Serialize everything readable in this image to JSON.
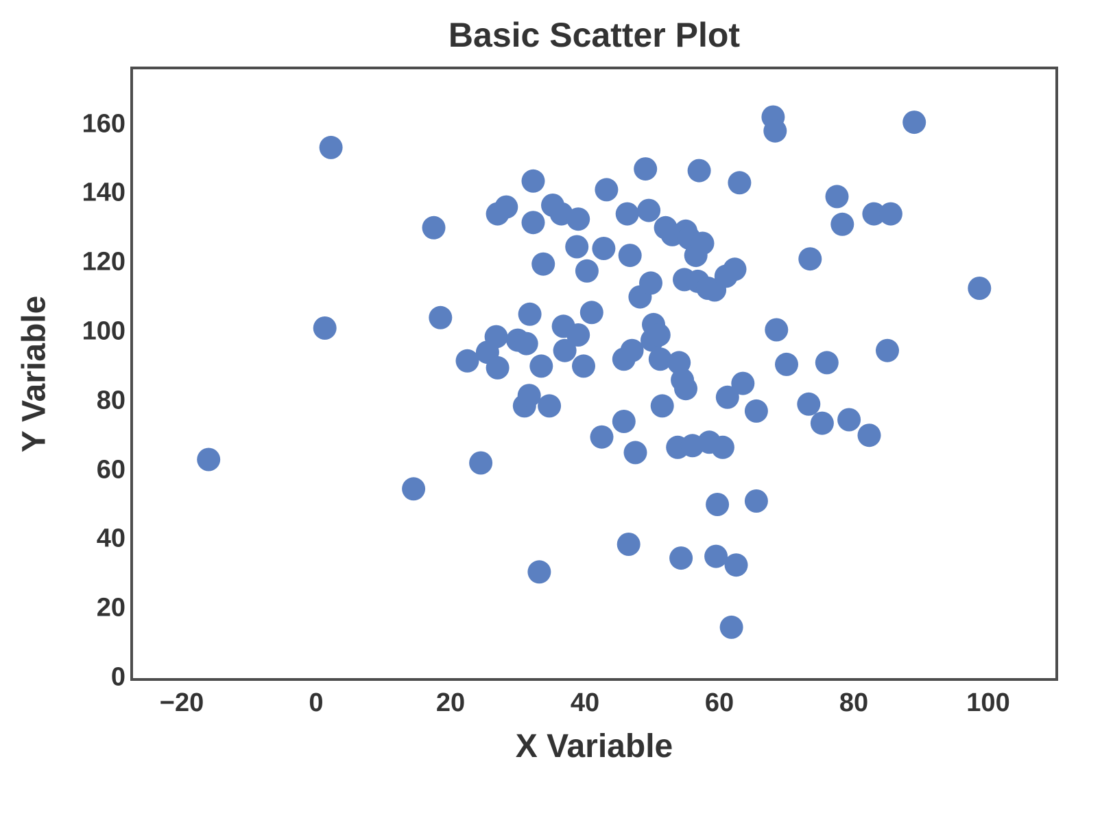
{
  "chart_data": {
    "type": "scatter",
    "title": "Basic Scatter Plot",
    "xlabel": "X Variable",
    "ylabel": "Y Variable",
    "xlim": [
      -27,
      110
    ],
    "ylim": [
      0,
      176
    ],
    "xticks": [
      -20,
      0,
      20,
      40,
      60,
      80,
      100
    ],
    "yticks": [
      0,
      20,
      40,
      60,
      80,
      100,
      120,
      140,
      160
    ],
    "xtick_labels": [
      "−20",
      "0",
      "20",
      "40",
      "60",
      "80",
      "100"
    ],
    "ytick_labels": [
      "0",
      "20",
      "40",
      "60",
      "80",
      "100",
      "120",
      "140",
      "160"
    ],
    "grid": false,
    "legend": null,
    "marker_color": "#5b80c1",
    "series": [
      {
        "name": "data",
        "points": [
          [
            -16.0,
            63.0
          ],
          [
            2.2,
            153.2
          ],
          [
            1.3,
            101.0
          ],
          [
            14.5,
            54.5
          ],
          [
            17.5,
            130.0
          ],
          [
            18.5,
            104.0
          ],
          [
            22.5,
            91.5
          ],
          [
            24.5,
            62.0
          ],
          [
            25.5,
            94.0
          ],
          [
            26.8,
            98.5
          ],
          [
            27.0,
            89.5
          ],
          [
            27.0,
            134.0
          ],
          [
            28.3,
            136.0
          ],
          [
            30.0,
            97.5
          ],
          [
            31.0,
            78.5
          ],
          [
            31.3,
            96.5
          ],
          [
            31.7,
            81.5
          ],
          [
            31.8,
            105.0
          ],
          [
            32.3,
            131.5
          ],
          [
            32.3,
            143.5
          ],
          [
            33.2,
            30.5
          ],
          [
            33.5,
            90.0
          ],
          [
            33.8,
            119.5
          ],
          [
            34.7,
            78.5
          ],
          [
            35.2,
            136.5
          ],
          [
            36.5,
            134.0
          ],
          [
            36.8,
            101.5
          ],
          [
            37.0,
            94.5
          ],
          [
            39.0,
            99.0
          ],
          [
            38.8,
            124.5
          ],
          [
            39.0,
            132.5
          ],
          [
            39.8,
            90.0
          ],
          [
            40.3,
            117.5
          ],
          [
            41.0,
            105.5
          ],
          [
            42.5,
            69.5
          ],
          [
            42.8,
            124.0
          ],
          [
            43.2,
            141.0
          ],
          [
            45.8,
            74.0
          ],
          [
            45.8,
            92.0
          ],
          [
            46.3,
            134.0
          ],
          [
            46.5,
            38.5
          ],
          [
            46.7,
            122.0
          ],
          [
            47.0,
            94.5
          ],
          [
            47.5,
            65.0
          ],
          [
            48.2,
            110.0
          ],
          [
            49.0,
            147.0
          ],
          [
            49.5,
            135.0
          ],
          [
            49.8,
            114.0
          ],
          [
            50.0,
            97.5
          ],
          [
            50.2,
            102.0
          ],
          [
            51.0,
            99.0
          ],
          [
            51.2,
            92.0
          ],
          [
            51.5,
            78.5
          ],
          [
            52.0,
            130.0
          ],
          [
            53.0,
            128.0
          ],
          [
            53.8,
            66.5
          ],
          [
            54.0,
            91.0
          ],
          [
            54.3,
            34.5
          ],
          [
            54.5,
            86.0
          ],
          [
            54.8,
            115.0
          ],
          [
            55.0,
            129.0
          ],
          [
            55.0,
            83.5
          ],
          [
            55.5,
            127.0
          ],
          [
            56.0,
            67.0
          ],
          [
            56.5,
            122.0
          ],
          [
            56.8,
            114.5
          ],
          [
            57.0,
            146.5
          ],
          [
            57.5,
            125.5
          ],
          [
            58.3,
            112.5
          ],
          [
            58.5,
            68.0
          ],
          [
            59.3,
            112.0
          ],
          [
            59.5,
            35.0
          ],
          [
            59.7,
            50.0
          ],
          [
            60.5,
            66.5
          ],
          [
            61.0,
            116.0
          ],
          [
            61.2,
            81.0
          ],
          [
            61.8,
            14.5
          ],
          [
            62.3,
            118.0
          ],
          [
            62.5,
            32.5
          ],
          [
            63.0,
            143.0
          ],
          [
            63.5,
            85.0
          ],
          [
            65.5,
            77.0
          ],
          [
            65.5,
            51.0
          ],
          [
            68.0,
            162.0
          ],
          [
            68.3,
            158.0
          ],
          [
            68.5,
            100.5
          ],
          [
            70.0,
            90.5
          ],
          [
            73.3,
            79.0
          ],
          [
            73.5,
            121.0
          ],
          [
            75.3,
            73.5
          ],
          [
            76.0,
            91.0
          ],
          [
            77.5,
            139.0
          ],
          [
            78.3,
            131.0
          ],
          [
            79.3,
            74.5
          ],
          [
            82.3,
            70.0
          ],
          [
            83.0,
            134.0
          ],
          [
            85.0,
            94.5
          ],
          [
            85.5,
            134.0
          ],
          [
            89.0,
            160.5
          ],
          [
            98.7,
            112.5
          ]
        ]
      }
    ]
  },
  "title": "Basic Scatter Plot",
  "axes": {
    "x_label": "X Variable",
    "y_label": "Y Variable"
  }
}
